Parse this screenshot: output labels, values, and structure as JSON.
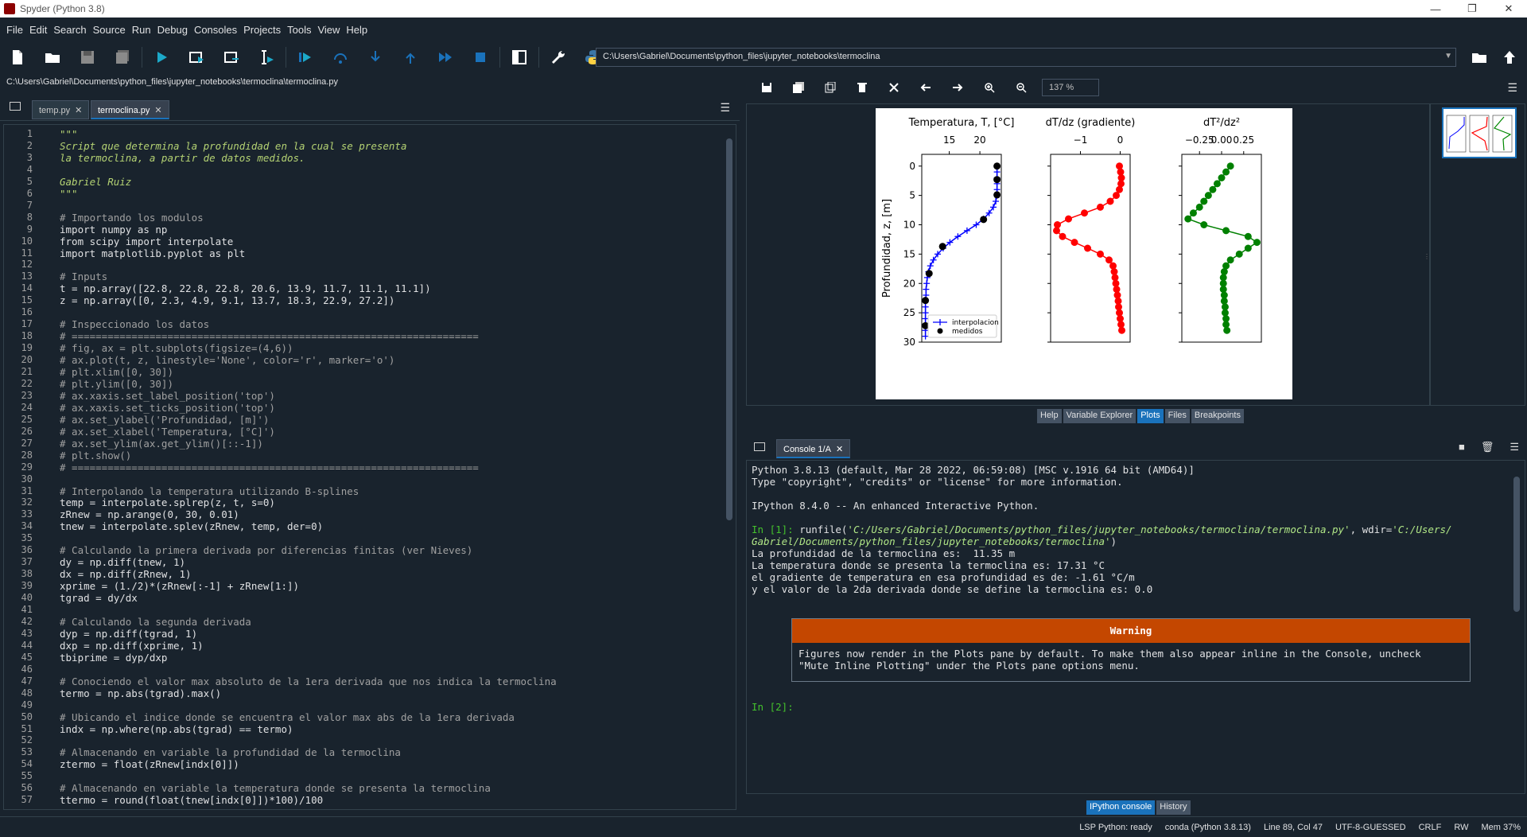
{
  "window": {
    "title": "Spyder (Python 3.8)",
    "controls": [
      "—",
      "❐",
      "✕"
    ]
  },
  "menu": [
    "File",
    "Edit",
    "Search",
    "Source",
    "Run",
    "Debug",
    "Consoles",
    "Projects",
    "Tools",
    "View",
    "Help"
  ],
  "toolbar": {
    "icons": [
      "new-file-icon",
      "open-folder-icon",
      "save-icon",
      "save-all-icon",
      "run-icon",
      "run-cell-icon",
      "run-cell-advance-icon",
      "run-selection-icon",
      "debug-icon",
      "step-over-icon",
      "step-into-icon",
      "step-return-icon",
      "continue-icon",
      "stop-icon",
      "maximize-pane-icon",
      "preferences-icon",
      "python-path-icon"
    ],
    "working_dir": "C:\\Users\\Gabriel\\Documents\\python_files\\jupyter_notebooks\\termoclina"
  },
  "editor": {
    "file_path": "C:\\Users\\Gabriel\\Documents\\python_files\\jupyter_notebooks\\termoclina\\termoclina.py",
    "tabs": [
      {
        "label": "temp.py",
        "active": false
      },
      {
        "label": "termoclina.py",
        "active": true
      }
    ],
    "lines": [
      {
        "n": "1",
        "t": "\"\"\"",
        "c": "doc"
      },
      {
        "n": "2",
        "t": "Script que determina la profundidad en la cual se presenta",
        "c": "doc"
      },
      {
        "n": "3",
        "t": "la termoclina, a partir de datos medidos.",
        "c": "doc"
      },
      {
        "n": "4",
        "t": "",
        "c": "doc"
      },
      {
        "n": "5",
        "t": "Gabriel Ruiz",
        "c": "doc"
      },
      {
        "n": "6",
        "t": "\"\"\"",
        "c": "doc"
      },
      {
        "n": "7",
        "t": "",
        "c": ""
      },
      {
        "n": "8",
        "t": "# Importando los modulos",
        "c": "cm"
      },
      {
        "n": "9",
        "t": "import numpy as np",
        "c": "imp"
      },
      {
        "n": "10",
        "t": "from scipy import interpolate",
        "c": "imp"
      },
      {
        "n": "11",
        "t": "import matplotlib.pyplot as plt",
        "c": "imp"
      },
      {
        "n": "12",
        "t": "",
        "c": ""
      },
      {
        "n": "13",
        "t": "# Inputs",
        "c": "cm"
      },
      {
        "n": "14",
        "t": "t = np.array([22.8, 22.8, 22.8, 20.6, 13.9, 11.7, 11.1, 11.1])",
        "c": ""
      },
      {
        "n": "15",
        "t": "z = np.array([0, 2.3, 4.9, 9.1, 13.7, 18.3, 22.9, 27.2])",
        "c": ""
      },
      {
        "n": "16",
        "t": "",
        "c": ""
      },
      {
        "n": "17",
        "t": "# Inspeccionado los datos",
        "c": "cm"
      },
      {
        "n": "18",
        "t": "# ====================================================================",
        "c": "cm"
      },
      {
        "n": "19",
        "t": "# fig, ax = plt.subplots(figsize=(4,6))",
        "c": "cm"
      },
      {
        "n": "20",
        "t": "# ax.plot(t, z, linestyle='None', color='r', marker='o')",
        "c": "cm"
      },
      {
        "n": "21",
        "t": "# plt.xlim([0, 30])",
        "c": "cm"
      },
      {
        "n": "22",
        "t": "# plt.ylim([0, 30])",
        "c": "cm"
      },
      {
        "n": "23",
        "t": "# ax.xaxis.set_label_position('top')",
        "c": "cm"
      },
      {
        "n": "24",
        "t": "# ax.xaxis.set_ticks_position('top')",
        "c": "cm"
      },
      {
        "n": "25",
        "t": "# ax.set_ylabel('Profundidad, [m]')",
        "c": "cm"
      },
      {
        "n": "26",
        "t": "# ax.set_xlabel('Temperatura, [°C]')",
        "c": "cm"
      },
      {
        "n": "27",
        "t": "# ax.set_ylim(ax.get_ylim()[::-1])",
        "c": "cm"
      },
      {
        "n": "28",
        "t": "# plt.show()",
        "c": "cm"
      },
      {
        "n": "29",
        "t": "# ====================================================================",
        "c": "cm"
      },
      {
        "n": "30",
        "t": "",
        "c": ""
      },
      {
        "n": "31",
        "t": "# Interpolando la temperatura utilizando B-splines",
        "c": "cm"
      },
      {
        "n": "32",
        "t": "temp = interpolate.splrep(z, t, s=0)",
        "c": ""
      },
      {
        "n": "33",
        "t": "zRnew = np.arange(0, 30, 0.01)",
        "c": ""
      },
      {
        "n": "34",
        "t": "tnew = interpolate.splev(zRnew, temp, der=0)",
        "c": ""
      },
      {
        "n": "35",
        "t": "",
        "c": ""
      },
      {
        "n": "36",
        "t": "# Calculando la primera derivada por diferencias finitas (ver Nieves)",
        "c": "cm"
      },
      {
        "n": "37",
        "t": "dy = np.diff(tnew, 1)",
        "c": ""
      },
      {
        "n": "38",
        "t": "dx = np.diff(zRnew, 1)",
        "c": ""
      },
      {
        "n": "39",
        "t": "xprime = (1./2)*(zRnew[:-1] + zRnew[1:])",
        "c": ""
      },
      {
        "n": "40",
        "t": "tgrad = dy/dx",
        "c": ""
      },
      {
        "n": "41",
        "t": "",
        "c": ""
      },
      {
        "n": "42",
        "t": "# Calculando la segunda derivada",
        "c": "cm"
      },
      {
        "n": "43",
        "t": "dyp = np.diff(tgrad, 1)",
        "c": ""
      },
      {
        "n": "44",
        "t": "dxp = np.diff(xprime, 1)",
        "c": ""
      },
      {
        "n": "45",
        "t": "tbiprime = dyp/dxp",
        "c": ""
      },
      {
        "n": "46",
        "t": "",
        "c": ""
      },
      {
        "n": "47",
        "t": "# Conociendo el valor max absoluto de la 1era derivada que nos indica la termoclina",
        "c": "cm"
      },
      {
        "n": "48",
        "t": "termo = np.abs(tgrad).max()",
        "c": ""
      },
      {
        "n": "49",
        "t": "",
        "c": ""
      },
      {
        "n": "50",
        "t": "# Ubicando el indice donde se encuentra el valor max abs de la 1era derivada",
        "c": "cm"
      },
      {
        "n": "51",
        "t": "indx = np.where(np.abs(tgrad) == termo)",
        "c": ""
      },
      {
        "n": "52",
        "t": "",
        "c": ""
      },
      {
        "n": "53",
        "t": "# Almacenando en variable la profundidad de la termoclina",
        "c": "cm"
      },
      {
        "n": "54",
        "t": "ztermo = float(zRnew[indx[0]])",
        "c": "bi"
      },
      {
        "n": "55",
        "t": "",
        "c": ""
      },
      {
        "n": "56",
        "t": "# Almacenando en variable la temperatura donde se presenta la termoclina",
        "c": "cm"
      },
      {
        "n": "57",
        "t": "ttermo = round(float(tnew[indx[0]])*100)/100",
        "c": "bi"
      }
    ]
  },
  "plots": {
    "zoom": "137 %",
    "pane_tabs": [
      "Help",
      "Variable Explorer",
      "Plots",
      "Files",
      "Breakpoints"
    ],
    "active_tab": "Plots"
  },
  "chart_data": [
    {
      "type": "line",
      "xlabel": "Temperatura, T, [°C]",
      "ylabel": "Profundidad, z, [m]",
      "xticks": [
        "15",
        "20"
      ],
      "yticks": [
        "0",
        "5",
        "10",
        "15",
        "20",
        "25",
        "30"
      ],
      "xlim": [
        10.5,
        23.5
      ],
      "ylim": [
        30,
        -2
      ],
      "legend": [
        "interpolacion",
        "medidos"
      ],
      "legend_position": "lower-center",
      "series": [
        {
          "name": "interpolacion",
          "color": "#0000ff",
          "marker": "+",
          "x": [
            22.8,
            22.8,
            22.8,
            22.8,
            22.8,
            22.8,
            22.6,
            22.2,
            21.5,
            20.6,
            19.4,
            17.9,
            16.4,
            15.1,
            14.0,
            13.1,
            12.4,
            11.9,
            11.6,
            11.4,
            11.3,
            11.2,
            11.2,
            11.1,
            11.1,
            11.1,
            11.1,
            11.1,
            11.1,
            11.1
          ],
          "y": [
            0,
            1,
            2,
            3,
            4,
            5,
            6,
            7,
            8,
            9,
            10,
            11,
            12,
            13,
            14,
            15,
            16,
            17,
            18,
            19,
            20,
            21,
            22,
            23,
            24,
            25,
            26,
            27,
            28,
            29
          ]
        },
        {
          "name": "medidos",
          "color": "#000000",
          "marker": "o",
          "x": [
            22.8,
            22.8,
            22.8,
            20.6,
            13.9,
            11.7,
            11.1,
            11.1
          ],
          "y": [
            0,
            2.3,
            4.9,
            9.1,
            13.7,
            18.3,
            22.9,
            27.2
          ]
        }
      ]
    },
    {
      "type": "line",
      "xlabel": "dT/dz (gradiente)",
      "xticks": [
        "−1",
        "0"
      ],
      "xlim": [
        -1.75,
        0.25
      ],
      "ylim": [
        30,
        -2
      ],
      "series": [
        {
          "color": "#ff0000",
          "marker": "o",
          "x": [
            -0.02,
            0.01,
            0.03,
            0.02,
            -0.02,
            -0.1,
            -0.25,
            -0.5,
            -0.9,
            -1.3,
            -1.58,
            -1.6,
            -1.45,
            -1.15,
            -0.82,
            -0.5,
            -0.28,
            -0.18,
            -0.15,
            -0.13,
            -0.11,
            -0.09,
            -0.07,
            -0.05,
            -0.04,
            -0.02,
            0.0,
            0.02,
            0.04
          ],
          "y": [
            0,
            1,
            2,
            3,
            4,
            5,
            6,
            7,
            8,
            9,
            10,
            11,
            12,
            13,
            14,
            15,
            16,
            17,
            18,
            19,
            20,
            21,
            22,
            23,
            24,
            25,
            26,
            27,
            28
          ]
        }
      ]
    },
    {
      "type": "line",
      "xlabel": "dT²/dz²",
      "xticks": [
        "−0.25",
        "0.00",
        "0.25"
      ],
      "xlim": [
        -0.45,
        0.45
      ],
      "ylim": [
        30,
        -2
      ],
      "series": [
        {
          "color": "#008000",
          "marker": "o",
          "x": [
            0.1,
            0.05,
            0.0,
            -0.05,
            -0.1,
            -0.15,
            -0.2,
            -0.25,
            -0.32,
            -0.38,
            -0.2,
            0.05,
            0.3,
            0.4,
            0.3,
            0.2,
            0.1,
            0.05,
            0.03,
            0.02,
            0.02,
            0.02,
            0.03,
            0.03,
            0.04,
            0.04,
            0.05,
            0.05,
            0.06
          ],
          "y": [
            0,
            1,
            2,
            3,
            4,
            5,
            6,
            7,
            8,
            9,
            10,
            11,
            12,
            13,
            14,
            15,
            16,
            17,
            18,
            19,
            20,
            21,
            22,
            23,
            24,
            25,
            26,
            27,
            28
          ]
        }
      ]
    }
  ],
  "console": {
    "tab": "Console 1/A",
    "lines": [
      "Python 3.8.13 (default, Mar 28 2022, 06:59:08) [MSC v.1916 64 bit (AMD64)]",
      "Type \"copyright\", \"credits\" or \"license\" for more information.",
      "",
      "IPython 8.4.0 -- An enhanced Interactive Python."
    ],
    "in1_prompt": "In [1]:",
    "in1_cmd": " runfile(",
    "in1_arg1": "'C:/Users/Gabriel/Documents/python_files/jupyter_notebooks/termoclina/termoclina.py'",
    "in1_mid": ", wdir=",
    "in1_arg2a": "'C:/Users/",
    "in1_arg2b": "Gabriel/Documents/python_files/jupyter_notebooks/termoclina'",
    "in1_end": ")",
    "output": [
      "La profundidad de la termoclina es:  11.35 m",
      "La temperatura donde se presenta la termoclina es: 17.31 °C",
      "el gradiente de temperatura en esa profundidad es de: -1.61 °C/m",
      "y el valor de la 2da derivada donde se define la termoclina es: 0.0"
    ],
    "warning_title": "Warning",
    "warning_line1": "Figures now render in the Plots pane by default. To make them also appear inline in the Console, uncheck",
    "warning_line2": "\"Mute Inline Plotting\" under the Plots pane options menu.",
    "in2_prompt": "In [2]:",
    "bottom_tabs": [
      "IPython console",
      "History"
    ]
  },
  "status": {
    "lsp": "LSP Python: ready",
    "env": "conda (Python 3.8.13)",
    "position": "Line 89, Col 47",
    "encoding": "UTF-8-GUESSED",
    "eol": "CRLF",
    "perm": "RW",
    "mem": "Mem 37%"
  }
}
